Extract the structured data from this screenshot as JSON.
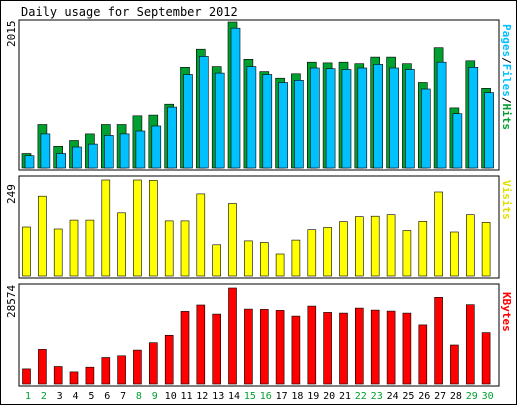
{
  "title": "Daily usage for September 2012",
  "days": [
    "1",
    "2",
    "3",
    "4",
    "5",
    "6",
    "7",
    "8",
    "9",
    "10",
    "11",
    "12",
    "13",
    "14",
    "15",
    "16",
    "17",
    "18",
    "19",
    "20",
    "21",
    "22",
    "23",
    "24",
    "25",
    "26",
    "27",
    "28",
    "29",
    "30"
  ],
  "weekend_days": [
    "1",
    "2",
    "8",
    "9",
    "15",
    "16",
    "22",
    "23",
    "29",
    "30"
  ],
  "colors": {
    "pages": "#00c0ff",
    "hits": "#00a030",
    "visits": "#ffff00",
    "kbytes": "#ff0000",
    "weekend_label": "#00a030",
    "weekday_label": "#000000"
  },
  "chart_data": [
    {
      "type": "bar",
      "panel": "hits-files-pages",
      "ymax_label": "2015",
      "ylim": [
        0,
        2015
      ],
      "legend": {
        "pages": "Pages",
        "files": "Files",
        "hits": "Hits",
        "sep": "/"
      },
      "series": [
        {
          "name": "Hits",
          "values": [
            200,
            600,
            300,
            380,
            470,
            600,
            600,
            720,
            730,
            880,
            1390,
            1640,
            1400,
            2015,
            1500,
            1330,
            1240,
            1300,
            1460,
            1450,
            1460,
            1440,
            1530,
            1530,
            1440,
            1180,
            1660,
            830,
            1480,
            1100
          ]
        },
        {
          "name": "Pages",
          "values": [
            170,
            470,
            200,
            290,
            330,
            450,
            470,
            510,
            580,
            840,
            1290,
            1540,
            1310,
            1930,
            1400,
            1290,
            1180,
            1210,
            1380,
            1370,
            1360,
            1380,
            1430,
            1380,
            1360,
            1090,
            1460,
            750,
            1390,
            1040
          ]
        }
      ]
    },
    {
      "type": "bar",
      "panel": "visits",
      "ymax_label": "249",
      "ylim": [
        0,
        249
      ],
      "legend": {
        "visits": "Visits"
      },
      "series": [
        {
          "name": "Visits",
          "values": [
            127,
            207,
            122,
            145,
            145,
            249,
            164,
            249,
            248,
            143,
            143,
            213,
            81,
            188,
            91,
            87,
            57,
            93,
            120,
            126,
            141,
            154,
            155,
            159,
            118,
            142,
            218,
            114,
            159,
            139
          ]
        }
      ]
    },
    {
      "type": "bar",
      "panel": "kbytes",
      "ymax_label": "28574",
      "ylim": [
        0,
        28574
      ],
      "legend": {
        "kbytes": "KBytes"
      },
      "series": [
        {
          "name": "KBytes",
          "values": [
            4500,
            10300,
            5200,
            3600,
            5000,
            7900,
            8400,
            10100,
            12300,
            14500,
            21600,
            23500,
            20800,
            28574,
            22300,
            22200,
            21900,
            20200,
            23200,
            21300,
            21100,
            22600,
            22000,
            21700,
            21100,
            17600,
            25800,
            11600,
            23600,
            15300
          ]
        }
      ]
    }
  ]
}
